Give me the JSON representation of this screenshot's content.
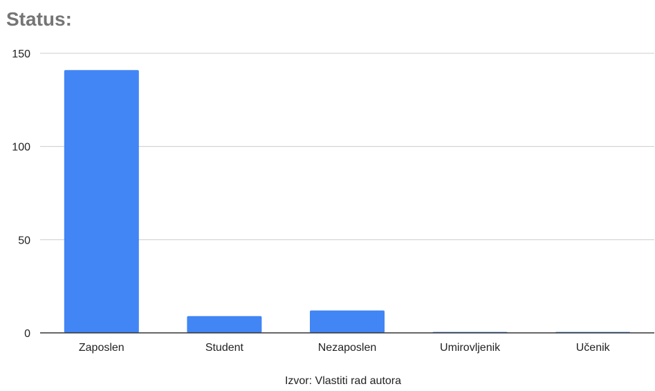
{
  "chart_data": {
    "type": "bar",
    "title": "Status:",
    "categories": [
      "Zaposlen",
      "Student",
      "Nezaposlen",
      "Umirovljenik",
      "Učenik"
    ],
    "values": [
      141,
      9,
      12,
      0.5,
      0.5
    ],
    "ylim": [
      0,
      150
    ],
    "yticks": [
      0,
      50,
      100,
      150
    ],
    "grid": true,
    "bar_color": "#4285f4",
    "gridline_color": "#cccccc",
    "axis_color": "#333333",
    "title_color": "#757575",
    "source_note": "Izvor: Vlastiti rad autora"
  }
}
